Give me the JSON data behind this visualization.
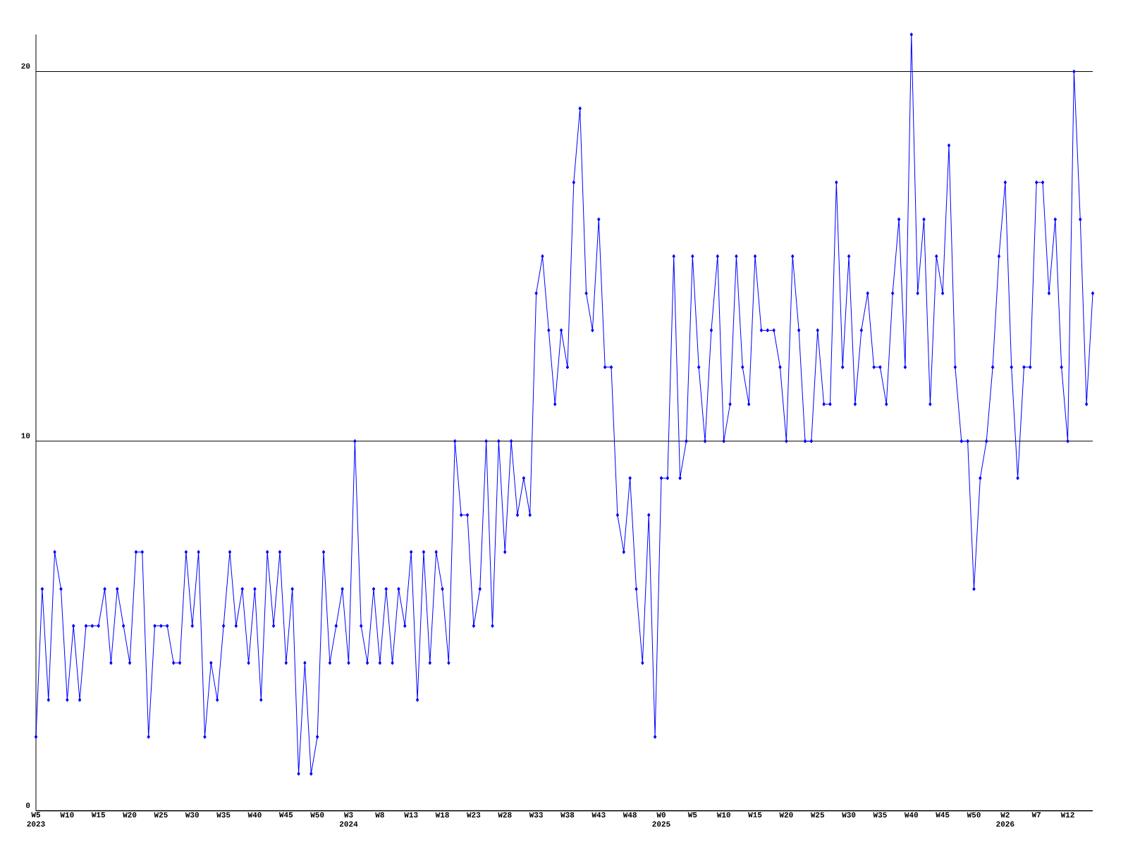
{
  "chart_data": {
    "type": "line",
    "categories": [
      "W5 2023",
      null,
      null,
      null,
      null,
      "W10",
      null,
      null,
      null,
      null,
      "W15",
      null,
      null,
      null,
      null,
      "W20",
      null,
      null,
      null,
      null,
      "W25",
      null,
      null,
      null,
      null,
      "W30",
      null,
      null,
      null,
      null,
      "W35",
      null,
      null,
      null,
      null,
      "W40",
      null,
      null,
      null,
      null,
      "W45",
      null,
      null,
      null,
      null,
      "W50",
      null,
      null,
      null,
      null,
      "W3 2024",
      null,
      null,
      null,
      null,
      "W8",
      null,
      null,
      null,
      null,
      "W13",
      null,
      null,
      null,
      null,
      "W18",
      null,
      null,
      null,
      null,
      "W23",
      null,
      null,
      null,
      null,
      "W28",
      null,
      null,
      null,
      null,
      "W33",
      null,
      null,
      null,
      null,
      "W38",
      null,
      null,
      null,
      null,
      "W43",
      null,
      null,
      null,
      null,
      "W48",
      null,
      null,
      null,
      null,
      "W0 2025",
      null,
      null,
      null,
      null,
      "W5",
      null,
      null,
      null,
      null,
      "W10",
      null,
      null,
      null,
      null,
      "W15",
      null,
      null,
      null,
      null,
      "W20",
      null,
      null,
      null,
      null,
      "W25",
      null,
      null,
      null,
      null,
      "W30",
      null,
      null,
      null,
      null,
      "W35",
      null,
      null,
      null,
      null,
      "W40",
      null,
      null,
      null,
      null,
      "W45",
      null,
      null,
      null,
      null,
      "W50",
      null,
      null,
      null,
      null,
      "W2 2026",
      null,
      null,
      null,
      null,
      "W7",
      null,
      null,
      null,
      null,
      "W12",
      null,
      null,
      null,
      null
    ],
    "values": [
      2,
      6,
      3,
      7,
      6,
      3,
      5,
      3,
      5,
      5,
      5,
      6,
      4,
      6,
      5,
      4,
      7,
      7,
      2,
      5,
      5,
      5,
      4,
      4,
      7,
      5,
      7,
      2,
      4,
      3,
      5,
      7,
      5,
      6,
      4,
      6,
      3,
      7,
      5,
      7,
      4,
      6,
      1,
      4,
      1,
      2,
      7,
      4,
      5,
      6,
      4,
      10,
      5,
      4,
      6,
      4,
      6,
      4,
      6,
      5,
      7,
      3,
      7,
      4,
      7,
      6,
      4,
      10,
      8,
      8,
      5,
      6,
      10,
      5,
      10,
      7,
      10,
      8,
      9,
      8,
      14,
      15,
      13,
      11,
      13,
      12,
      17,
      19,
      14,
      13,
      16,
      12,
      12,
      8,
      7,
      9,
      6,
      4,
      8,
      2,
      9,
      9,
      15,
      9,
      10,
      15,
      12,
      10,
      13,
      15,
      10,
      11,
      15,
      12,
      11,
      15,
      13,
      13,
      13,
      12,
      10,
      15,
      13,
      10,
      10,
      13,
      11,
      11,
      17,
      12,
      15,
      11,
      13,
      14,
      12,
      12,
      11,
      14,
      16,
      12,
      21,
      14,
      16,
      11,
      15,
      14,
      18,
      12,
      10,
      10,
      6,
      9,
      10,
      12,
      15,
      17,
      12,
      9,
      12,
      12,
      17,
      17,
      14,
      16,
      12,
      10,
      20,
      16,
      11,
      14
    ],
    "color": "#0000ff",
    "ylim": [
      0,
      21
    ],
    "yticks": [
      0,
      10,
      20
    ],
    "grid": "y",
    "marker": "diamond",
    "line_style": "solid"
  }
}
